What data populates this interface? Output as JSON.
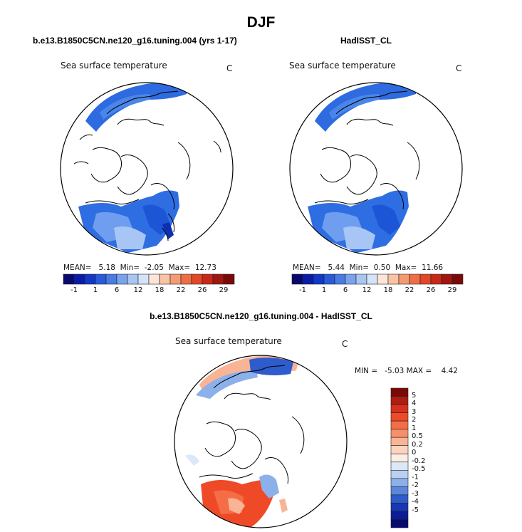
{
  "title": "DJF",
  "panels": [
    {
      "run_title": "b.e13.B1850C5CN.ne120_g16.tuning.004 (yrs 1-17)",
      "variable_label": "Sea surface temperature",
      "unit": "C",
      "stats": {
        "mean_label": "MEAN=",
        "mean": "5.18",
        "min_label": "Min=",
        "min": "-2.05",
        "max_label": "Max=",
        "max": "12.73"
      }
    },
    {
      "run_title": "HadISST_CL",
      "variable_label": "Sea surface temperature",
      "unit": "C",
      "stats": {
        "mean_label": "MEAN=",
        "mean": "5.44",
        "min_label": "Min=",
        "min": "0.50",
        "max_label": "Max=",
        "max": "11.66"
      }
    }
  ],
  "diff_panel": {
    "run_title": "b.e13.B1850C5CN.ne120_g16.tuning.004 - HadISST_CL",
    "variable_label": "Sea surface temperature",
    "unit": "C",
    "range_text": "MIN =   -5.03 MAX =    4.42"
  },
  "abs_colorbar": {
    "colors": [
      "#08086e",
      "#0a1ca6",
      "#1238c8",
      "#2a5ad8",
      "#4a7be2",
      "#7ba3ec",
      "#a9c6f3",
      "#d4e3f9",
      "#fde6d9",
      "#fbc3a6",
      "#f59b74",
      "#ee6f47",
      "#e04827",
      "#c62a17",
      "#a01610",
      "#7a0a08"
    ],
    "ticks": [
      "-1",
      "1",
      "6",
      "12",
      "18",
      "22",
      "26",
      "29"
    ]
  },
  "diff_colorbar": {
    "colors": [
      "#7a0a08",
      "#b01c10",
      "#d7301c",
      "#ee4a28",
      "#f46d45",
      "#f7906a",
      "#f9b495",
      "#fbd3bf",
      "#fdeee4",
      "#dbe8f8",
      "#b9d0f2",
      "#8cb0ea",
      "#5a86dc",
      "#2f5ccc",
      "#1738b4",
      "#0b1c96",
      "#060a70"
    ],
    "ticks": [
      "5",
      "4",
      "3",
      "2",
      "1",
      "0.5",
      "0.2",
      "0",
      "-0.2",
      "-0.5",
      "-1",
      "-2",
      "-3",
      "-4",
      "-5"
    ]
  }
}
